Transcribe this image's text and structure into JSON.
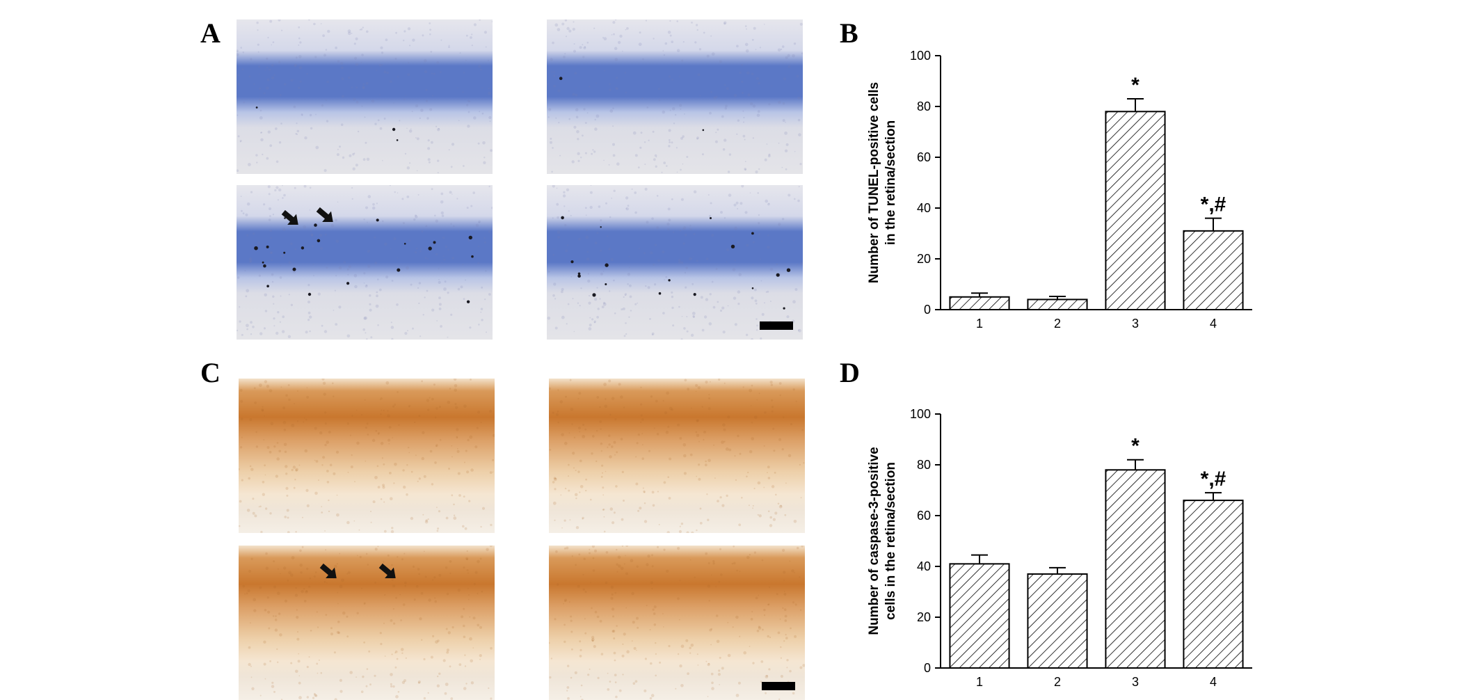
{
  "panels": {
    "a": {
      "letter": "A"
    },
    "b": {
      "letter": "B"
    },
    "c": {
      "letter": "C"
    },
    "d": {
      "letter": "D"
    }
  },
  "micrographs": {
    "tunel_stain_color": "#5b78c6",
    "caspase_stain_color": "#c9772e",
    "tunel": [
      {
        "arrows": 0,
        "scale_bar": false,
        "dots": 3
      },
      {
        "arrows": 0,
        "scale_bar": false,
        "dots": 2
      },
      {
        "arrows": 2,
        "scale_bar": false,
        "dots": 22
      },
      {
        "arrows": 0,
        "scale_bar": true,
        "dots": 18
      }
    ],
    "caspase": [
      {
        "arrows": 0,
        "scale_bar": false
      },
      {
        "arrows": 0,
        "scale_bar": false
      },
      {
        "arrows": 2,
        "scale_bar": false
      },
      {
        "arrows": 0,
        "scale_bar": true
      }
    ]
  },
  "chart_data": [
    {
      "type": "bar",
      "panel": "B",
      "categories": [
        "1",
        "2",
        "3",
        "4"
      ],
      "values": [
        5,
        4,
        78,
        31
      ],
      "errors": [
        1.5,
        1.2,
        5,
        5
      ],
      "annotations": [
        "",
        "",
        "*",
        "*,#"
      ],
      "ylabel_line1": "Number of TUNEL-positive cells",
      "ylabel_line2": "in the retina/section",
      "ylim": [
        0,
        100
      ],
      "yticks": [
        0,
        20,
        40,
        60,
        80,
        100
      ],
      "bar_fill": "hatched"
    },
    {
      "type": "bar",
      "panel": "D",
      "categories": [
        "1",
        "2",
        "3",
        "4"
      ],
      "values": [
        41,
        37,
        78,
        66
      ],
      "errors": [
        3.5,
        2.5,
        4,
        3
      ],
      "annotations": [
        "",
        "",
        "*",
        "*,#"
      ],
      "ylabel_line1": "Number of caspase-3-positive",
      "ylabel_line2": "cells in the retina/section",
      "ylim": [
        0,
        100
      ],
      "yticks": [
        0,
        20,
        40,
        60,
        80,
        100
      ],
      "bar_fill": "hatched"
    }
  ]
}
